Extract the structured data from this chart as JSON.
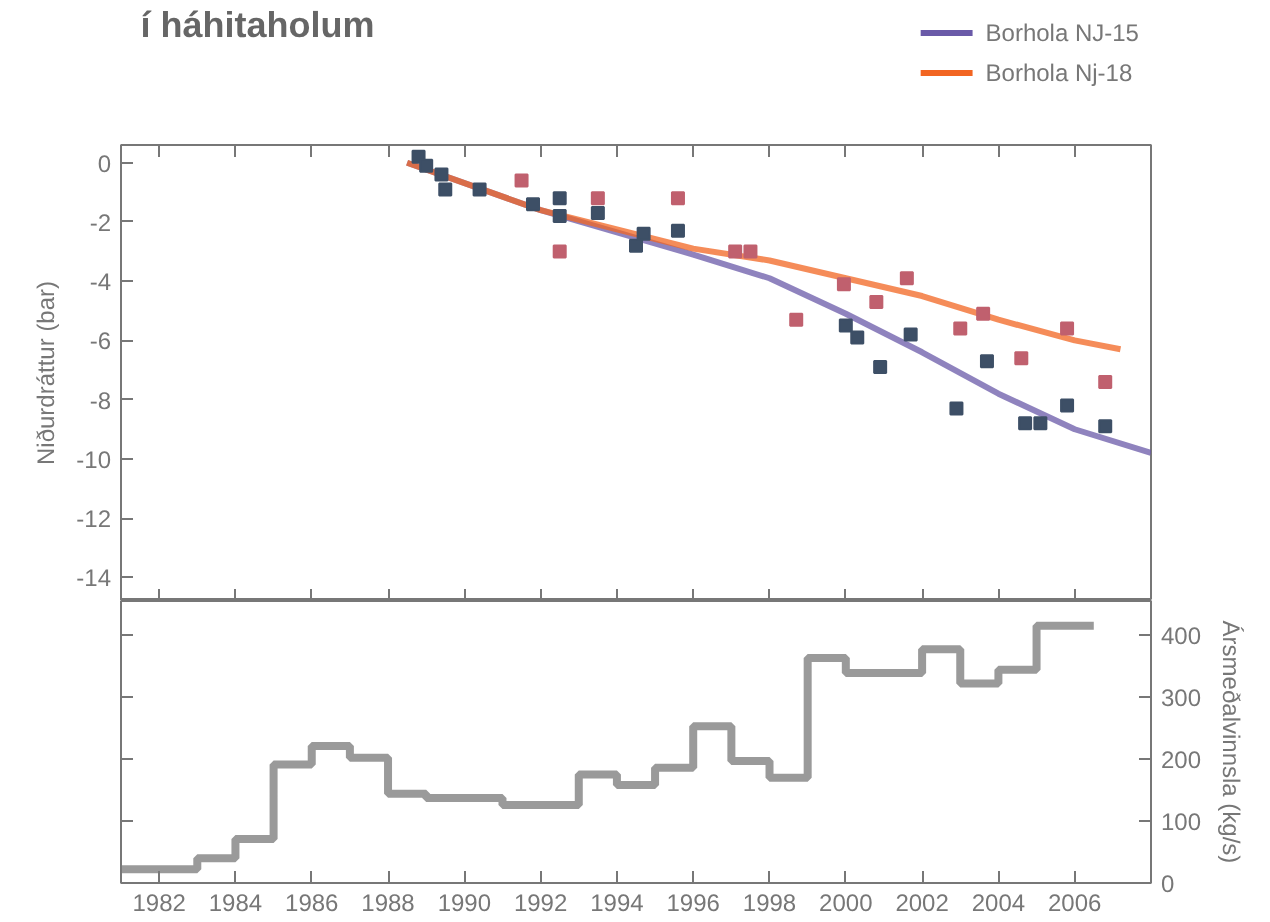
{
  "chart_data": [
    {
      "type": "scatter",
      "title": "í háhitaholum",
      "ylabel": "Niðurdráttur (bar)",
      "xlim": [
        1981,
        2008
      ],
      "ylim": [
        -14.8,
        0.6
      ],
      "xticks": [
        {
          "value": 1982,
          "label": null
        },
        {
          "value": 1984,
          "label": null
        },
        {
          "value": 1986,
          "label": null
        },
        {
          "value": 1988,
          "label": null
        },
        {
          "value": 1990,
          "label": null
        },
        {
          "value": 1992,
          "label": null
        },
        {
          "value": 1994,
          "label": null
        },
        {
          "value": 1996,
          "label": null
        },
        {
          "value": 1998,
          "label": null
        },
        {
          "value": 2000,
          "label": null
        },
        {
          "value": 2002,
          "label": null
        },
        {
          "value": 2004,
          "label": null
        },
        {
          "value": 2006,
          "label": null
        }
      ],
      "yticks": [
        0,
        -2,
        -4,
        -6,
        -8,
        -10,
        -12,
        -14
      ],
      "tick_labels": "y",
      "legend": "top right",
      "grid": false,
      "series": [
        {
          "name": "Borhola NJ-15",
          "type": "line",
          "color": "#6a5aa8",
          "x": [
            1988.5,
            1992,
            1996,
            1998,
            2000,
            2002,
            2004,
            2006,
            2008
          ],
          "values": [
            0,
            -1.6,
            -3.1,
            -3.9,
            -5.1,
            -6.4,
            -7.8,
            -9.0,
            -9.8
          ]
        },
        {
          "name": "Borhola Nj-18",
          "type": "line",
          "color": "#f26522",
          "x": [
            1988.5,
            1992,
            1996,
            1998,
            2000,
            2002,
            2004,
            2006,
            2007.2
          ],
          "values": [
            0,
            -1.6,
            -2.9,
            -3.3,
            -3.9,
            -4.5,
            -5.3,
            -6.0,
            -6.3
          ]
        },
        {
          "type": "scatter",
          "marker": "square",
          "color": "#3d4f66",
          "x": [
            1988.8,
            1989.0,
            1989.4,
            1989.5,
            1990.4,
            1991.8,
            1992.5,
            1992.5,
            1993.5,
            1994.5,
            1994.7,
            1995.6,
            2000.0,
            2000.3,
            2000.9,
            2001.7,
            2002.9,
            2003.7,
            2004.7,
            2005.1,
            2005.8,
            2006.8
          ],
          "values": [
            0.2,
            -0.1,
            -0.4,
            -0.9,
            -0.9,
            -1.4,
            -1.2,
            -1.8,
            -1.7,
            -2.8,
            -2.4,
            -2.3,
            -5.5,
            -5.9,
            -6.9,
            -5.8,
            -8.3,
            -6.7,
            -8.8,
            -8.8,
            -8.2,
            -8.9
          ]
        },
        {
          "type": "scatter",
          "marker": "square",
          "color": "#c0606e",
          "x": [
            1991.5,
            1992.5,
            1993.5,
            1995.6,
            1997.1,
            1997.5,
            1998.7,
            1999.95,
            2000.8,
            2001.6,
            2003.0,
            2003.6,
            2004.6,
            2005.8,
            2006.8
          ],
          "values": [
            -0.6,
            -3.0,
            -1.2,
            -1.2,
            -3.0,
            -3.0,
            -5.3,
            -4.1,
            -4.7,
            -3.9,
            -5.6,
            -5.1,
            -6.6,
            -5.6,
            -7.4
          ]
        }
      ]
    },
    {
      "type": "step",
      "y2label": "Ársmeðalvinnsla (kg/s)",
      "xlim": [
        1981,
        2008
      ],
      "y2lim": [
        0,
        455
      ],
      "xticks": [
        1982,
        1984,
        1986,
        1988,
        1990,
        1992,
        1994,
        1996,
        1998,
        2000,
        2002,
        2004,
        2006
      ],
      "y2ticks": [
        0,
        100,
        200,
        300,
        400
      ],
      "grid": false,
      "series": [
        {
          "axis": "y2",
          "color": "#9a9a9a",
          "x": [
            1981,
            1983,
            1984,
            1985,
            1986,
            1987,
            1988,
            1989,
            1991,
            1993,
            1994,
            1995,
            1996,
            1997,
            1998,
            1999,
            2000,
            2002,
            2003,
            2004,
            2005,
            2006.5
          ],
          "values": [
            22,
            40,
            71,
            191,
            221,
            202,
            144,
            137,
            126,
            175,
            158,
            186,
            253,
            197,
            170,
            363,
            339,
            377,
            322,
            344,
            415,
            415
          ]
        }
      ]
    }
  ]
}
